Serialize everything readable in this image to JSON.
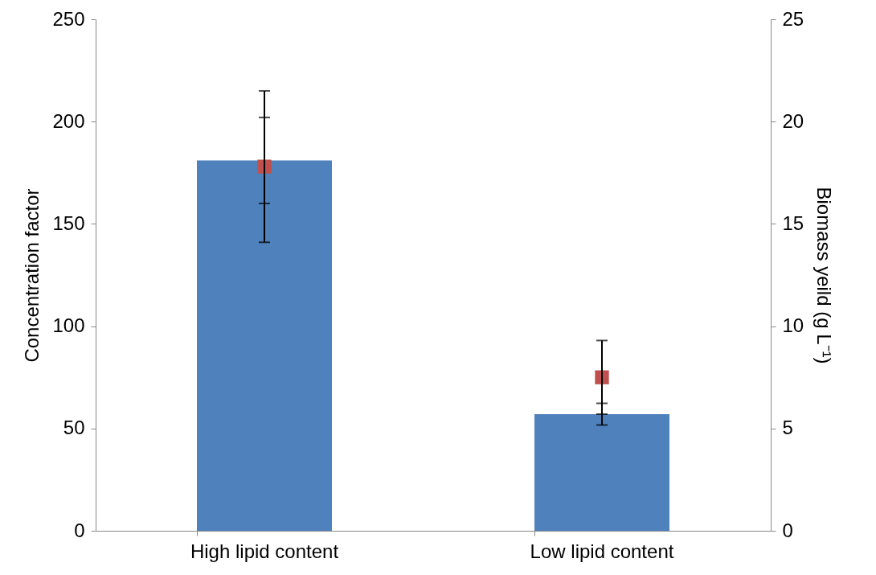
{
  "chart_data": {
    "type": "bar",
    "categories": [
      "High lipid content",
      "Low lipid content"
    ],
    "ylabel": "Concentration  factor",
    "y2label": "Biomass yeild (g L⁻¹)",
    "series": [
      {
        "color": "#4f81bd",
        "values": [
          181,
          57
        ],
        "errors": [
          21,
          5.3
        ]
      },
      {
        "type": "scatter",
        "axis": "y2",
        "color": "#c0504d",
        "values": [
          17.8,
          7.5
        ],
        "errors": [
          3.7,
          [
            5.7,
            9.3
          ]
        ],
        "marker": "square"
      }
    ],
    "ylim": [
      0,
      250
    ],
    "yticks": [
      0,
      50,
      100,
      150,
      200,
      250
    ],
    "y2lim": [
      0,
      25
    ],
    "y2ticks": [
      0,
      5,
      10,
      15,
      20,
      25
    ],
    "grid": false
  }
}
